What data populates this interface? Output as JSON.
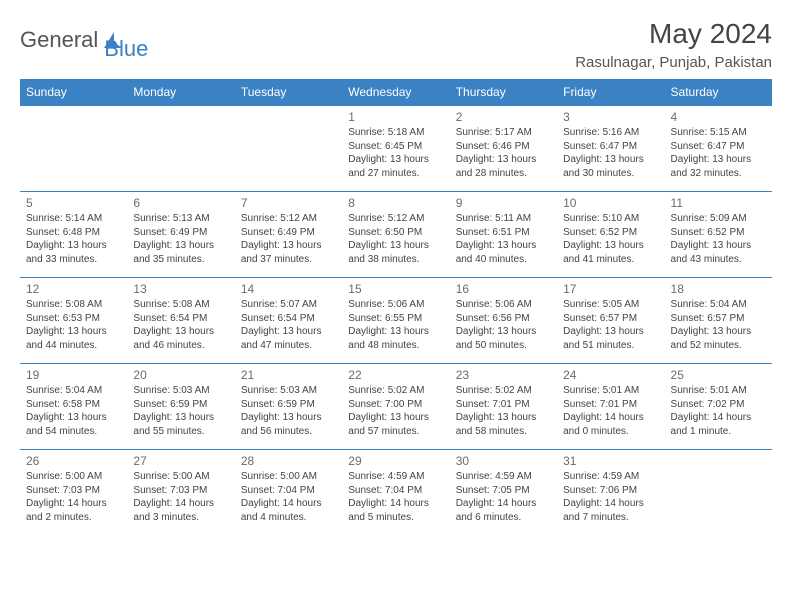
{
  "brand": {
    "text1": "General",
    "text2": "Blue"
  },
  "title": "May 2024",
  "location": "Rasulnagar, Punjab, Pakistan",
  "colors": {
    "accent": "#3b82c4",
    "text": "#444444",
    "muted": "#6b6b6b",
    "bg": "#ffffff"
  },
  "day_headers": [
    "Sunday",
    "Monday",
    "Tuesday",
    "Wednesday",
    "Thursday",
    "Friday",
    "Saturday"
  ],
  "weeks": [
    [
      null,
      null,
      null,
      {
        "n": "1",
        "sr": "5:18 AM",
        "ss": "6:45 PM",
        "dl": "13 hours and 27 minutes."
      },
      {
        "n": "2",
        "sr": "5:17 AM",
        "ss": "6:46 PM",
        "dl": "13 hours and 28 minutes."
      },
      {
        "n": "3",
        "sr": "5:16 AM",
        "ss": "6:47 PM",
        "dl": "13 hours and 30 minutes."
      },
      {
        "n": "4",
        "sr": "5:15 AM",
        "ss": "6:47 PM",
        "dl": "13 hours and 32 minutes."
      }
    ],
    [
      {
        "n": "5",
        "sr": "5:14 AM",
        "ss": "6:48 PM",
        "dl": "13 hours and 33 minutes."
      },
      {
        "n": "6",
        "sr": "5:13 AM",
        "ss": "6:49 PM",
        "dl": "13 hours and 35 minutes."
      },
      {
        "n": "7",
        "sr": "5:12 AM",
        "ss": "6:49 PM",
        "dl": "13 hours and 37 minutes."
      },
      {
        "n": "8",
        "sr": "5:12 AM",
        "ss": "6:50 PM",
        "dl": "13 hours and 38 minutes."
      },
      {
        "n": "9",
        "sr": "5:11 AM",
        "ss": "6:51 PM",
        "dl": "13 hours and 40 minutes."
      },
      {
        "n": "10",
        "sr": "5:10 AM",
        "ss": "6:52 PM",
        "dl": "13 hours and 41 minutes."
      },
      {
        "n": "11",
        "sr": "5:09 AM",
        "ss": "6:52 PM",
        "dl": "13 hours and 43 minutes."
      }
    ],
    [
      {
        "n": "12",
        "sr": "5:08 AM",
        "ss": "6:53 PM",
        "dl": "13 hours and 44 minutes."
      },
      {
        "n": "13",
        "sr": "5:08 AM",
        "ss": "6:54 PM",
        "dl": "13 hours and 46 minutes."
      },
      {
        "n": "14",
        "sr": "5:07 AM",
        "ss": "6:54 PM",
        "dl": "13 hours and 47 minutes."
      },
      {
        "n": "15",
        "sr": "5:06 AM",
        "ss": "6:55 PM",
        "dl": "13 hours and 48 minutes."
      },
      {
        "n": "16",
        "sr": "5:06 AM",
        "ss": "6:56 PM",
        "dl": "13 hours and 50 minutes."
      },
      {
        "n": "17",
        "sr": "5:05 AM",
        "ss": "6:57 PM",
        "dl": "13 hours and 51 minutes."
      },
      {
        "n": "18",
        "sr": "5:04 AM",
        "ss": "6:57 PM",
        "dl": "13 hours and 52 minutes."
      }
    ],
    [
      {
        "n": "19",
        "sr": "5:04 AM",
        "ss": "6:58 PM",
        "dl": "13 hours and 54 minutes."
      },
      {
        "n": "20",
        "sr": "5:03 AM",
        "ss": "6:59 PM",
        "dl": "13 hours and 55 minutes."
      },
      {
        "n": "21",
        "sr": "5:03 AM",
        "ss": "6:59 PM",
        "dl": "13 hours and 56 minutes."
      },
      {
        "n": "22",
        "sr": "5:02 AM",
        "ss": "7:00 PM",
        "dl": "13 hours and 57 minutes."
      },
      {
        "n": "23",
        "sr": "5:02 AM",
        "ss": "7:01 PM",
        "dl": "13 hours and 58 minutes."
      },
      {
        "n": "24",
        "sr": "5:01 AM",
        "ss": "7:01 PM",
        "dl": "14 hours and 0 minutes."
      },
      {
        "n": "25",
        "sr": "5:01 AM",
        "ss": "7:02 PM",
        "dl": "14 hours and 1 minute."
      }
    ],
    [
      {
        "n": "26",
        "sr": "5:00 AM",
        "ss": "7:03 PM",
        "dl": "14 hours and 2 minutes."
      },
      {
        "n": "27",
        "sr": "5:00 AM",
        "ss": "7:03 PM",
        "dl": "14 hours and 3 minutes."
      },
      {
        "n": "28",
        "sr": "5:00 AM",
        "ss": "7:04 PM",
        "dl": "14 hours and 4 minutes."
      },
      {
        "n": "29",
        "sr": "4:59 AM",
        "ss": "7:04 PM",
        "dl": "14 hours and 5 minutes."
      },
      {
        "n": "30",
        "sr": "4:59 AM",
        "ss": "7:05 PM",
        "dl": "14 hours and 6 minutes."
      },
      {
        "n": "31",
        "sr": "4:59 AM",
        "ss": "7:06 PM",
        "dl": "14 hours and 7 minutes."
      },
      null
    ]
  ],
  "labels": {
    "sunrise": "Sunrise:",
    "sunset": "Sunset:",
    "daylight": "Daylight:"
  }
}
